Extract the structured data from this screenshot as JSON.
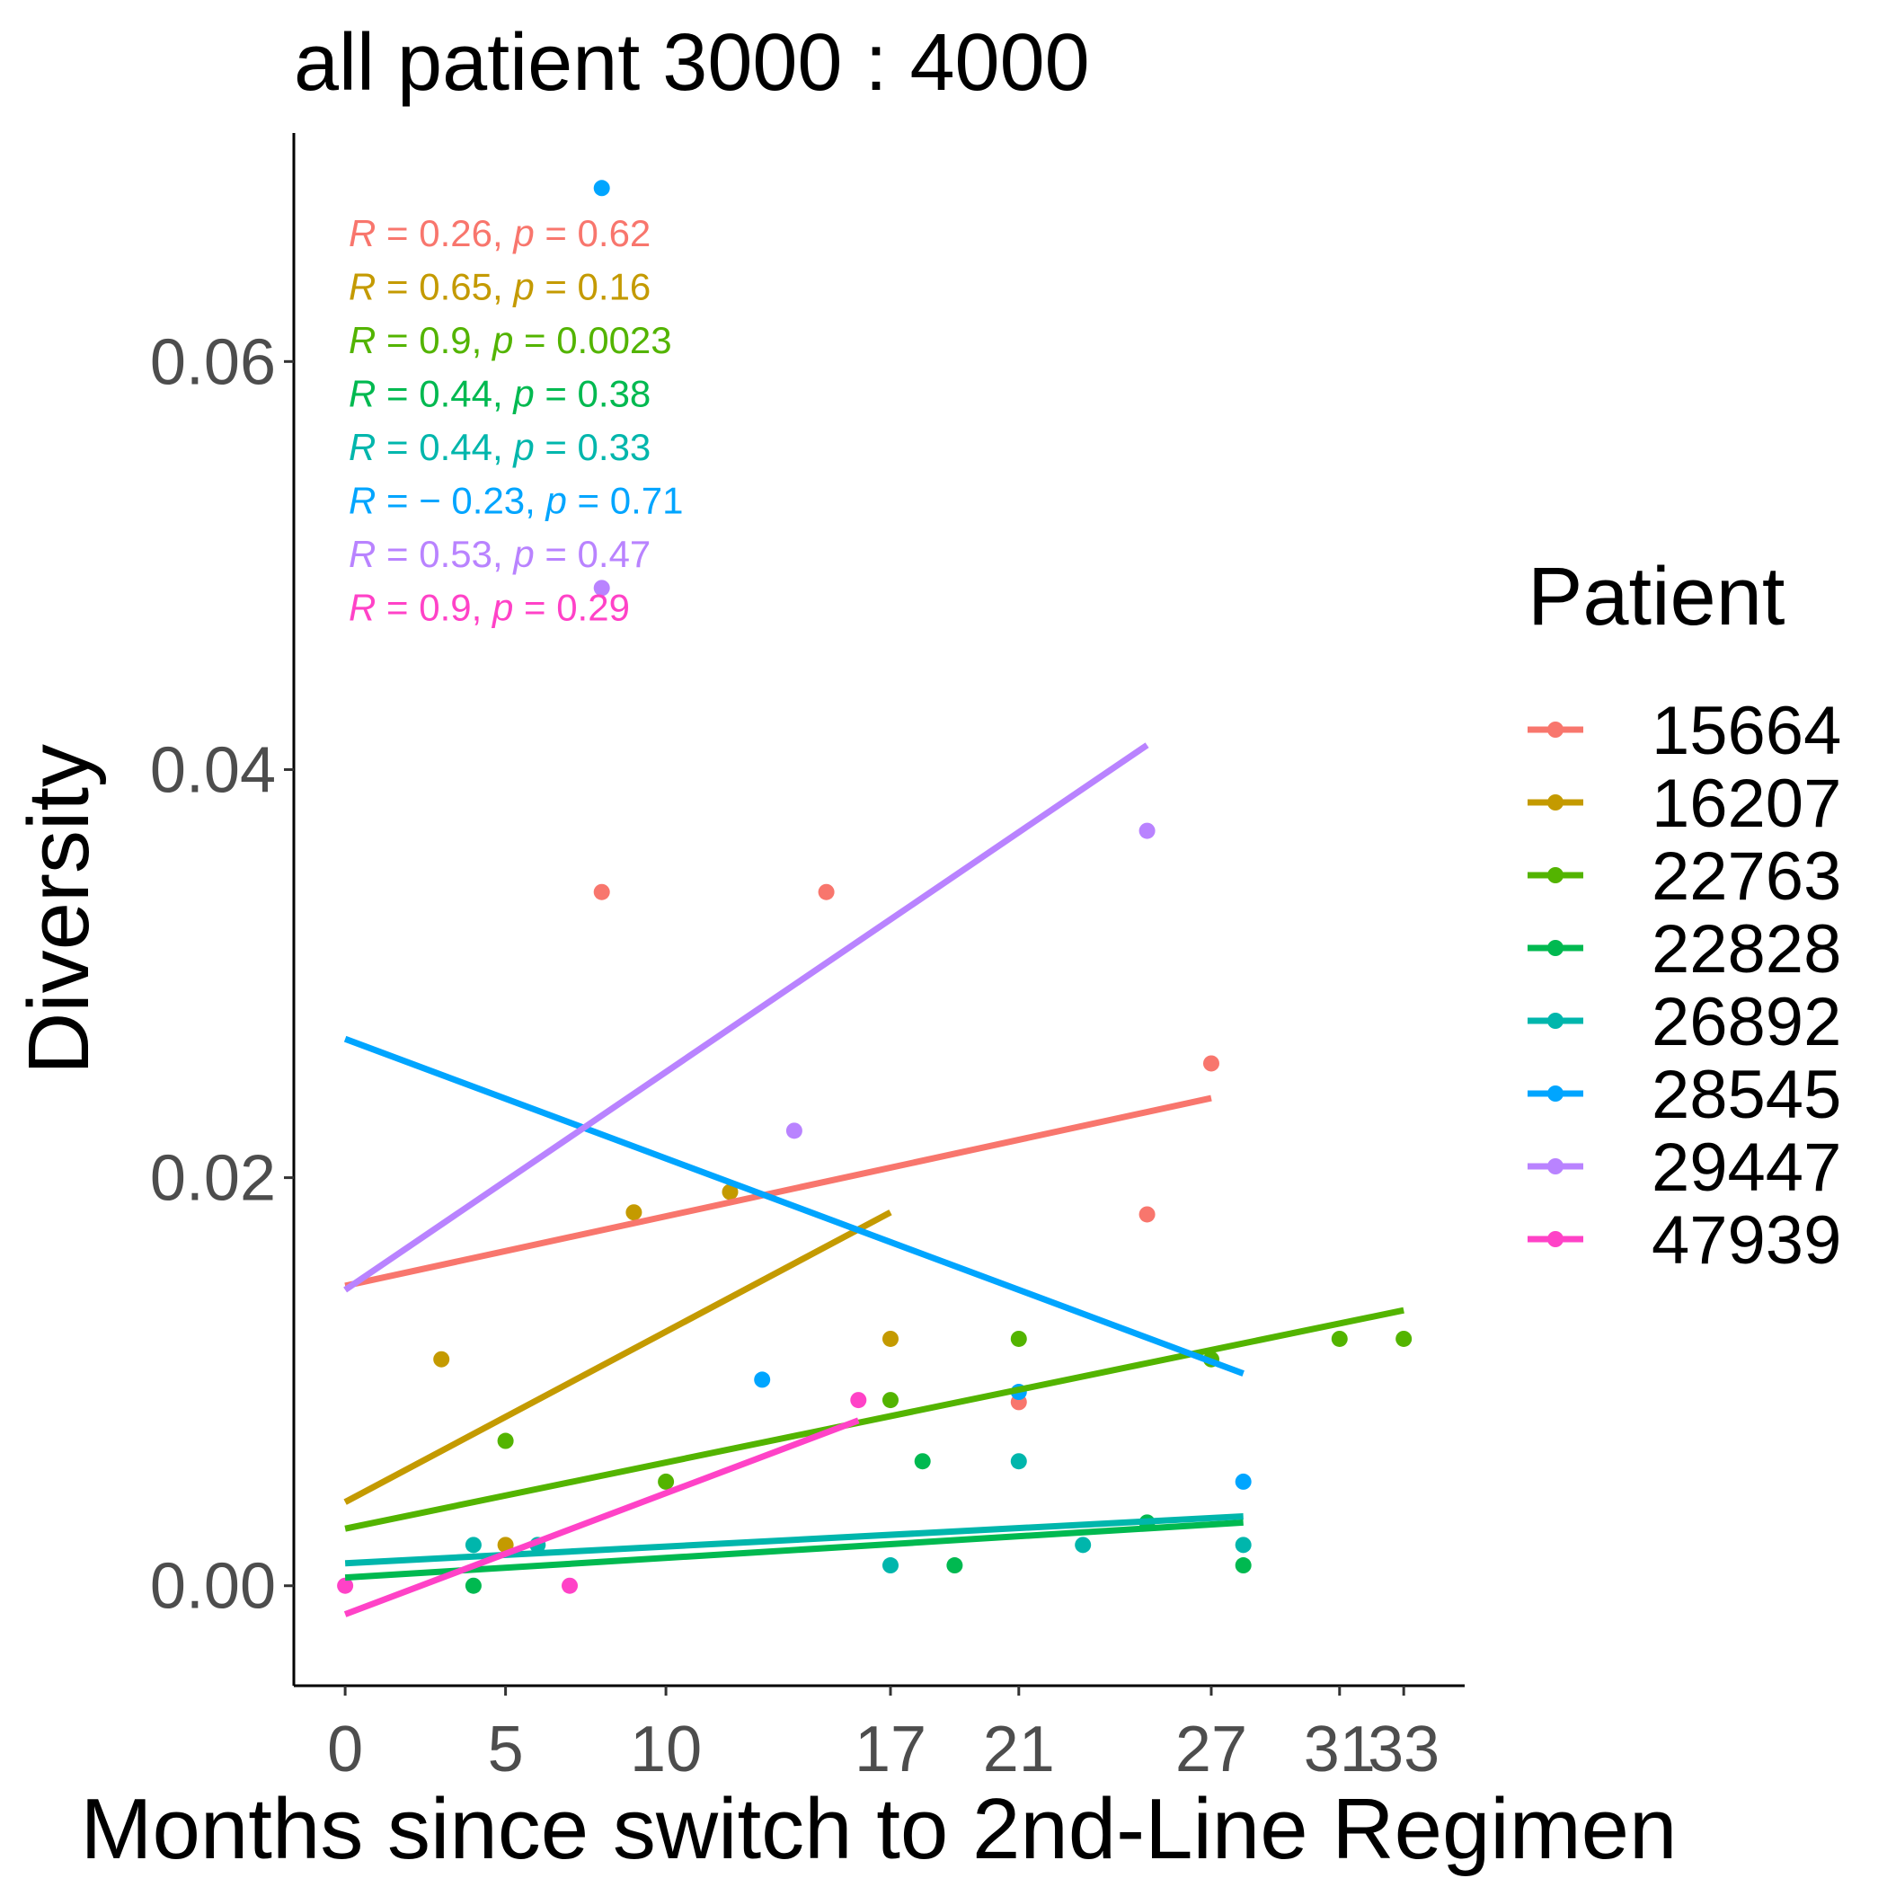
{
  "chart_data": {
    "type": "scatter",
    "title": "all patient 3000 : 4000",
    "xlabel": "Months since switch to 2nd-Line Regimen",
    "ylabel": "Diversity",
    "xlim": [
      -1.6,
      34.9
    ],
    "ylim": [
      -0.0049,
      0.0712
    ],
    "x_ticks": [
      0,
      5,
      10,
      17,
      21,
      27,
      31,
      33
    ],
    "x_tick_labels": [
      "0",
      "5",
      "10",
      "17",
      "21",
      "27",
      "31",
      "33"
    ],
    "y_ticks": [
      0.0,
      0.02,
      0.04,
      0.06
    ],
    "y_tick_labels": [
      "0.00",
      "0.02",
      "0.04",
      "0.06"
    ],
    "grid": false,
    "legend": {
      "title": "Patient",
      "placement": "right"
    },
    "series": [
      {
        "name": "15664",
        "color": "#F8766D",
        "points": [
          [
            8,
            0.034
          ],
          [
            15,
            0.034
          ],
          [
            21,
            0.009
          ],
          [
            25,
            0.0182
          ],
          [
            27,
            0.0256
          ]
        ],
        "fit": [
          [
            0,
            0.0147
          ],
          [
            27,
            0.0239
          ]
        ],
        "annotation": {
          "r": "0.26",
          "p": "0.62"
        }
      },
      {
        "name": "16207",
        "color": "#C49A00",
        "points": [
          [
            3,
            0.0111
          ],
          [
            5,
            0.002
          ],
          [
            9,
            0.0183
          ],
          [
            12,
            0.0193
          ],
          [
            17,
            0.0121
          ]
        ],
        "fit": [
          [
            0,
            0.0041
          ],
          [
            17,
            0.0183
          ]
        ],
        "annotation": {
          "r": "0.65",
          "p": "0.16"
        }
      },
      {
        "name": "22763",
        "color": "#53B400",
        "points": [
          [
            5,
            0.0071
          ],
          [
            10,
            0.0051
          ],
          [
            17,
            0.0091
          ],
          [
            21,
            0.0121
          ],
          [
            27,
            0.0111
          ],
          [
            31,
            0.0121
          ],
          [
            33,
            0.0121
          ]
        ],
        "fit": [
          [
            0,
            0.0028
          ],
          [
            33,
            0.0135
          ]
        ],
        "annotation": {
          "r": "0.9",
          "p": "0.0023"
        }
      },
      {
        "name": "22828",
        "color": "#00B950",
        "points": [
          [
            4,
            0.0
          ],
          [
            18,
            0.0061
          ],
          [
            19,
            0.001
          ],
          [
            25,
            0.0031
          ],
          [
            28,
            0.001
          ]
        ],
        "fit": [
          [
            0,
            0.0004
          ],
          [
            28,
            0.0031
          ]
        ],
        "annotation": {
          "r": "0.44",
          "p": "0.38"
        }
      },
      {
        "name": "26892",
        "color": "#00B6AC",
        "points": [
          [
            4,
            0.002
          ],
          [
            6,
            0.002
          ],
          [
            17,
            0.001
          ],
          [
            21,
            0.0061
          ],
          [
            23,
            0.002
          ],
          [
            28,
            0.002
          ]
        ],
        "fit": [
          [
            0,
            0.0011
          ],
          [
            28,
            0.0034
          ]
        ],
        "annotation": {
          "r": "0.44",
          "p": "0.33"
        }
      },
      {
        "name": "28545",
        "color": "#00A5FF",
        "points": [
          [
            8,
            0.0685
          ],
          [
            13,
            0.0101
          ],
          [
            21,
            0.0095
          ],
          [
            28,
            0.0051
          ]
        ],
        "fit": [
          [
            0,
            0.0268
          ],
          [
            28,
            0.0104
          ]
        ],
        "annotation": {
          "r": "− 0.23",
          "p": "0.71"
        }
      },
      {
        "name": "29447",
        "color": "#B983FF",
        "points": [
          [
            8,
            0.0489
          ],
          [
            14,
            0.0223
          ],
          [
            25,
            0.037
          ]
        ],
        "fit": [
          [
            0,
            0.0145
          ],
          [
            25,
            0.0412
          ]
        ],
        "annotation": {
          "r": "0.53",
          "p": "0.47"
        }
      },
      {
        "name": "47939",
        "color": "#FF42C7",
        "points": [
          [
            0,
            0.0
          ],
          [
            7,
            0.0
          ],
          [
            16,
            0.0091
          ]
        ],
        "fit": [
          [
            0,
            -0.0014
          ],
          [
            16,
            0.0081
          ]
        ],
        "annotation": {
          "r": "0.9",
          "p": "0.29"
        }
      }
    ]
  }
}
